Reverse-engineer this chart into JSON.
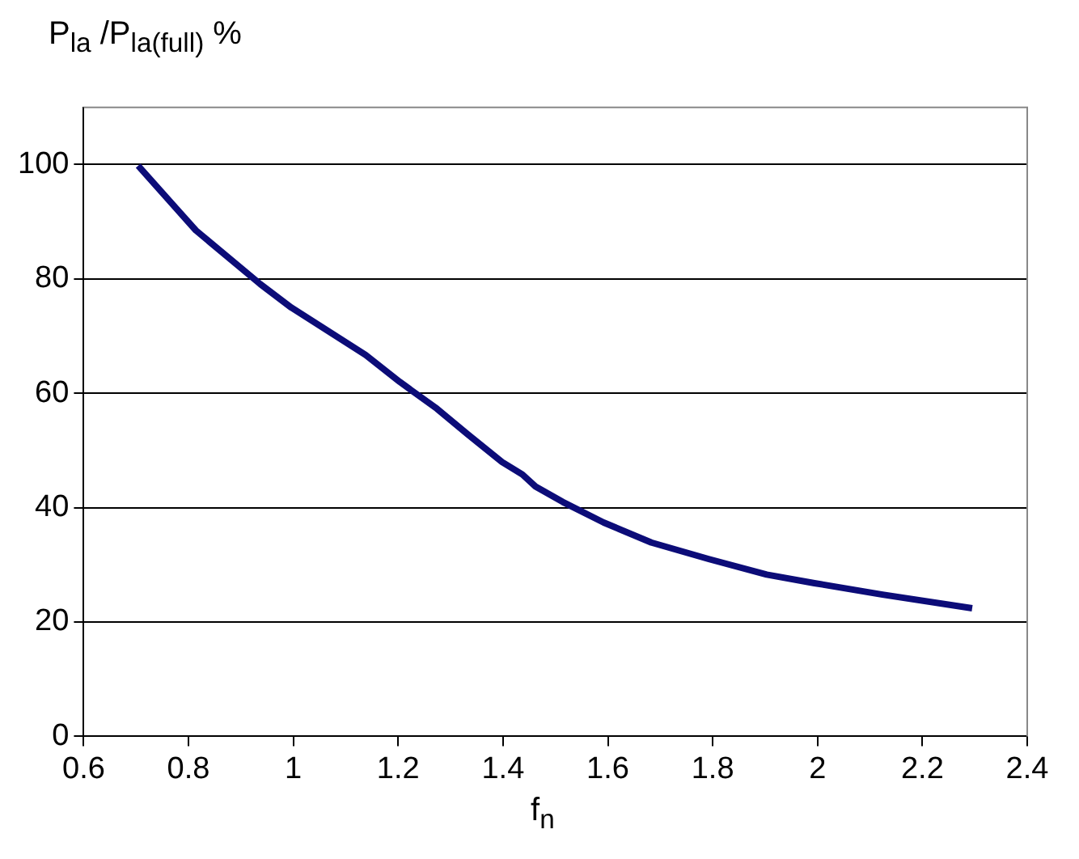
{
  "chart_data": {
    "type": "line",
    "ylabel": "P$_{la}$ /P$_{la(full)}$ %",
    "xlabel": "f$_{n}$",
    "x": [
      0.704,
      0.814,
      0.937,
      0.996,
      1.138,
      1.203,
      1.274,
      1.333,
      1.398,
      1.437,
      1.462,
      1.514,
      1.592,
      1.683,
      1.793,
      1.903,
      1.994,
      2.124,
      2.295
    ],
    "series": [
      {
        "color": "#0c0c78",
        "values": [
          99.8,
          88.5,
          79.1,
          75,
          66.7,
          62,
          57.3,
          52.8,
          48,
          45.8,
          43.7,
          41,
          37.4,
          33.9,
          31,
          28.3,
          26.8,
          24.8,
          22.4
        ]
      }
    ],
    "xlim": [
      0.6,
      2.4
    ],
    "xticks": [
      0.6,
      0.8,
      1,
      1.2,
      1.4,
      1.6,
      1.8,
      2,
      2.2,
      2.4
    ],
    "ylim": [
      0,
      110
    ],
    "yticks": [
      0,
      20,
      40,
      60,
      80,
      100
    ],
    "grid": "y",
    "legend": false,
    "marker": "none",
    "line_style": "solid"
  }
}
